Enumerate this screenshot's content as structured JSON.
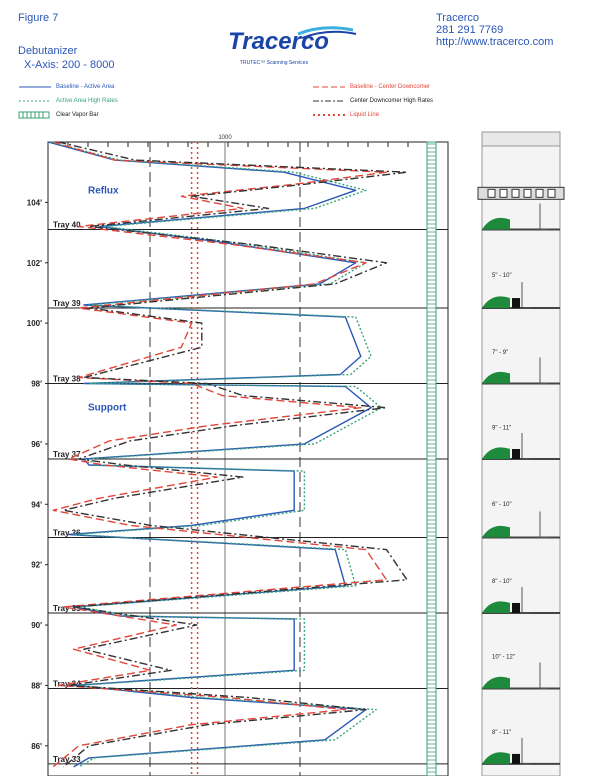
{
  "header": {
    "figure": "Figure 7",
    "subtitle_line1": "Debutanizer",
    "subtitle_line2": "X-Axis: 200 - 8000",
    "logo_word": "Tracerco",
    "logo_tagline": "TRUTEC™ Scanning Services",
    "company": "Tracerco",
    "phone": "281 291 7769",
    "url": "http://www.tracerco.com"
  },
  "legend": [
    {
      "label": "Baseline - Active Area",
      "color": "#2a57b8",
      "style": "solid",
      "label_color": "#2a57b8"
    },
    {
      "label": "Active Area High Rates",
      "color": "#3aa37a",
      "style": "dotted",
      "label_color": "#3aa37a"
    },
    {
      "label": "Clear Vapor Bar",
      "color": "#3aa37a",
      "style": "bar",
      "label_color": "#222222"
    },
    {
      "label": "Baseline - Center Downcomer",
      "color": "#e0463a",
      "style": "dash",
      "label_color": "#e0463a"
    },
    {
      "label": "Center Downcomer High Rates",
      "color": "#333333",
      "style": "dashdot",
      "label_color": "#222222"
    },
    {
      "label": "Liquid Line",
      "color": "#e0463a",
      "style": "dots",
      "label_color": "#e0463a"
    }
  ],
  "chart_data": {
    "type": "line",
    "x_axis_note": "X-Axis: 200 - 8000",
    "x_tick_label": "1000",
    "y_unit": "ft",
    "y_ticks": [
      "104'",
      "102'",
      "100'",
      "98'",
      "96'",
      "94'",
      "92'",
      "90'",
      "88'",
      "86'"
    ],
    "y_values": [
      104,
      102,
      100,
      98,
      96,
      94,
      92,
      90,
      88,
      86
    ],
    "ylim": [
      85,
      106
    ],
    "trays": [
      {
        "label": "Tray 40",
        "elev": 103.1
      },
      {
        "label": "Tray 39",
        "elev": 100.5
      },
      {
        "label": "Tray 38",
        "elev": 98.0
      },
      {
        "label": "Tray 37",
        "elev": 95.5
      },
      {
        "label": "Tray 36",
        "elev": 92.9
      },
      {
        "label": "Tray 35",
        "elev": 90.4
      },
      {
        "label": "Tray 34",
        "elev": 87.9
      },
      {
        "label": "Tray 33",
        "elev": 85.4
      }
    ],
    "annotations": [
      {
        "text": "Reflux",
        "elev": 104.3
      },
      {
        "text": "Support",
        "elev": 97.1
      }
    ],
    "liquid_line": 3000,
    "series": [
      {
        "name": "Baseline - Active Area",
        "color": "#2a57b8",
        "dash": "",
        "points": [
          [
            200,
            106.0
          ],
          [
            1500,
            105.4
          ],
          [
            4800,
            105.0
          ],
          [
            6200,
            104.4
          ],
          [
            5200,
            103.8
          ],
          [
            1200,
            103.2
          ],
          [
            3500,
            102.7
          ],
          [
            6200,
            102.0
          ],
          [
            5500,
            101.3
          ],
          [
            900,
            100.6
          ],
          [
            6000,
            100.2
          ],
          [
            6300,
            98.9
          ],
          [
            5900,
            98.3
          ],
          [
            900,
            98.0
          ],
          [
            6000,
            97.9
          ],
          [
            6500,
            97.2
          ],
          [
            5200,
            96.0
          ],
          [
            900,
            95.5
          ],
          [
            1000,
            95.3
          ],
          [
            5000,
            95.1
          ],
          [
            5000,
            93.8
          ],
          [
            3000,
            93.3
          ],
          [
            600,
            93.0
          ],
          [
            5800,
            92.5
          ],
          [
            6000,
            91.3
          ],
          [
            700,
            90.6
          ],
          [
            1600,
            90.3
          ],
          [
            5000,
            90.2
          ],
          [
            5000,
            88.5
          ],
          [
            700,
            88.0
          ],
          [
            3000,
            87.6
          ],
          [
            6400,
            87.2
          ],
          [
            5600,
            86.2
          ],
          [
            1000,
            85.6
          ],
          [
            700,
            85.3
          ]
        ]
      },
      {
        "name": "Active Area High Rates",
        "color": "#3aa37a",
        "dash": "2,2",
        "points": [
          [
            250,
            106.0
          ],
          [
            1600,
            105.4
          ],
          [
            5000,
            105.0
          ],
          [
            6400,
            104.4
          ],
          [
            5400,
            103.8
          ],
          [
            1300,
            103.2
          ],
          [
            3700,
            102.7
          ],
          [
            6400,
            102.0
          ],
          [
            5700,
            101.3
          ],
          [
            1000,
            100.6
          ],
          [
            6200,
            100.2
          ],
          [
            6500,
            98.9
          ],
          [
            6100,
            98.3
          ],
          [
            1000,
            98.0
          ],
          [
            6200,
            97.9
          ],
          [
            6700,
            97.2
          ],
          [
            5400,
            96.0
          ],
          [
            1000,
            95.5
          ],
          [
            1100,
            95.3
          ],
          [
            5200,
            95.1
          ],
          [
            5200,
            93.8
          ],
          [
            3200,
            93.3
          ],
          [
            700,
            93.0
          ],
          [
            6000,
            92.5
          ],
          [
            6200,
            91.3
          ],
          [
            800,
            90.6
          ],
          [
            1800,
            90.3
          ],
          [
            5200,
            90.2
          ],
          [
            5200,
            88.5
          ],
          [
            800,
            88.0
          ],
          [
            3200,
            87.6
          ],
          [
            6600,
            87.2
          ],
          [
            5800,
            86.2
          ],
          [
            1100,
            85.6
          ],
          [
            800,
            85.3
          ]
        ]
      },
      {
        "name": "Baseline - Center Downcomer",
        "color": "#e0463a",
        "dash": "8,4",
        "points": [
          [
            300,
            106.0
          ],
          [
            1500,
            105.4
          ],
          [
            6800,
            105.0
          ],
          [
            5000,
            104.6
          ],
          [
            2800,
            104.2
          ],
          [
            4000,
            103.8
          ],
          [
            800,
            103.2
          ],
          [
            3800,
            102.6
          ],
          [
            6400,
            102.0
          ],
          [
            5400,
            101.3
          ],
          [
            800,
            100.5
          ],
          [
            3000,
            100.0
          ],
          [
            2800,
            99.2
          ],
          [
            800,
            98.2
          ],
          [
            3000,
            98.0
          ],
          [
            3600,
            97.6
          ],
          [
            6300,
            97.2
          ],
          [
            3300,
            96.6
          ],
          [
            1400,
            96.1
          ],
          [
            600,
            95.5
          ],
          [
            1300,
            95.3
          ],
          [
            3500,
            94.9
          ],
          [
            1200,
            94.2
          ],
          [
            300,
            93.8
          ],
          [
            1800,
            93.3
          ],
          [
            6400,
            92.5
          ],
          [
            6800,
            91.5
          ],
          [
            500,
            90.6
          ],
          [
            2700,
            90.0
          ],
          [
            700,
            89.2
          ],
          [
            2200,
            88.5
          ],
          [
            400,
            88.0
          ],
          [
            3700,
            87.6
          ],
          [
            6000,
            87.2
          ],
          [
            3000,
            86.7
          ],
          [
            800,
            86.0
          ],
          [
            300,
            85.3
          ]
        ]
      },
      {
        "name": "Center Downcomer High Rates",
        "color": "#333333",
        "dash": "8,3,2,3",
        "points": [
          [
            400,
            106.0
          ],
          [
            1900,
            105.4
          ],
          [
            7200,
            105.0
          ],
          [
            5200,
            104.6
          ],
          [
            3000,
            104.2
          ],
          [
            4500,
            103.8
          ],
          [
            1000,
            103.2
          ],
          [
            4200,
            102.6
          ],
          [
            6800,
            102.0
          ],
          [
            5800,
            101.3
          ],
          [
            1000,
            100.5
          ],
          [
            3200,
            100.0
          ],
          [
            3200,
            99.2
          ],
          [
            900,
            98.2
          ],
          [
            3300,
            98.0
          ],
          [
            4000,
            97.6
          ],
          [
            6800,
            97.2
          ],
          [
            3800,
            96.6
          ],
          [
            1800,
            96.1
          ],
          [
            800,
            95.5
          ],
          [
            1700,
            95.3
          ],
          [
            4000,
            94.9
          ],
          [
            1500,
            94.2
          ],
          [
            500,
            93.8
          ],
          [
            2200,
            93.3
          ],
          [
            6800,
            92.5
          ],
          [
            7200,
            91.5
          ],
          [
            700,
            90.6
          ],
          [
            3100,
            90.0
          ],
          [
            900,
            89.2
          ],
          [
            2600,
            88.5
          ],
          [
            600,
            88.0
          ],
          [
            4100,
            87.6
          ],
          [
            6400,
            87.2
          ],
          [
            3300,
            86.7
          ],
          [
            1000,
            86.0
          ],
          [
            500,
            85.3
          ]
        ]
      }
    ]
  },
  "schematic": {
    "tray_spacing_labels": [
      "5\" - 10\"",
      "7\" - 9\"",
      "9\" - 11\"",
      "6\" - 10\"",
      "8\" - 10\"",
      "10\" - 12\"",
      "8\" - 11\""
    ]
  }
}
